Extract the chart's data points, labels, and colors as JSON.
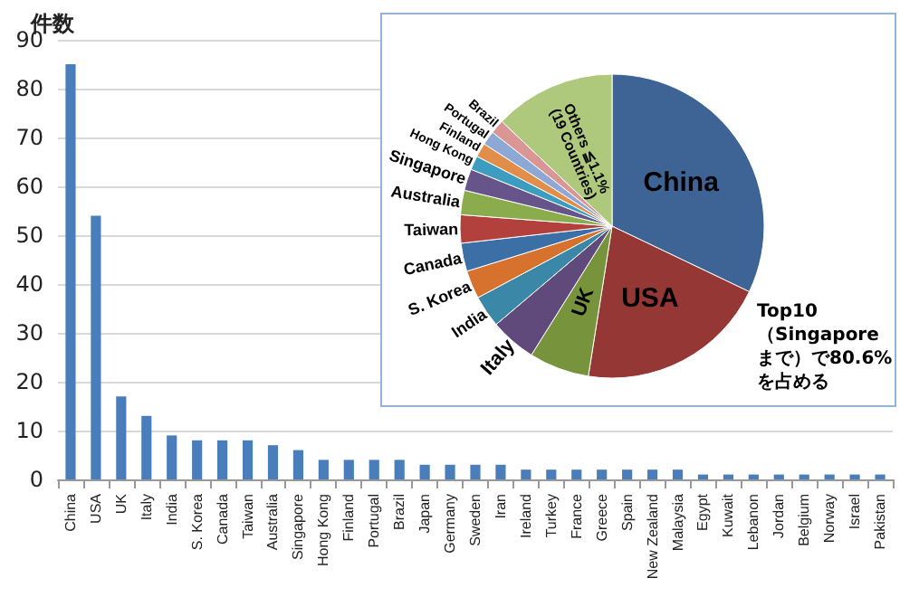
{
  "chart_data": [
    {
      "type": "bar",
      "ylabel": "件数",
      "categories": [
        "China",
        "USA",
        "UK",
        "Italy",
        "India",
        "S. Korea",
        "Canada",
        "Taiwan",
        "Australia",
        "Singapore",
        "Hong Kong",
        "Finland",
        "Portugal",
        "Brazil",
        "Japan",
        "Germany",
        "Sweden",
        "Iran",
        "Ireland",
        "Turkey",
        "France",
        "Greece",
        "Spain",
        "New Zealand",
        "Malaysia",
        "Egypt",
        "Kuwait",
        "Lebanon",
        "Jordan",
        "Belgium",
        "Norway",
        "Israel",
        "Pakistan"
      ],
      "values": [
        85,
        54,
        17,
        13,
        9,
        8,
        8,
        8,
        7,
        6,
        4,
        4,
        4,
        4,
        3,
        3,
        3,
        3,
        2,
        2,
        2,
        2,
        2,
        2,
        2,
        1,
        1,
        1,
        1,
        1,
        1,
        1,
        1
      ],
      "color": "#4a7ebb",
      "ylim": [
        0,
        90
      ],
      "yticks": [
        0,
        10,
        20,
        30,
        40,
        50,
        60,
        70,
        80,
        90
      ],
      "grid": "y",
      "legend": false
    },
    {
      "type": "pie",
      "categories": [
        "China",
        "USA",
        "UK",
        "Italy",
        "India",
        "S. Korea",
        "Canada",
        "Taiwan",
        "Australia",
        "Singapore",
        "Hong Kong",
        "Finland",
        "Portugal",
        "Brazil",
        "Others ≦1.1%\n(19 Countries)"
      ],
      "values": [
        32.1,
        20.4,
        6.4,
        4.9,
        3.4,
        3.0,
        3.0,
        3.0,
        2.6,
        2.3,
        1.5,
        1.5,
        1.5,
        1.5,
        12.9
      ],
      "colors": [
        "#3e6496",
        "#953735",
        "#77933c",
        "#5f4a7b",
        "#3a87a8",
        "#d7722e",
        "#3c6fa5",
        "#b2413d",
        "#8aac4c",
        "#67548a",
        "#3d9dc0",
        "#e08e4a",
        "#8da8d4",
        "#d99694",
        "#aec97c"
      ],
      "annotations": [
        "Top10（Singaporeまで）で80.6%を占める"
      ],
      "legend": false
    }
  ]
}
